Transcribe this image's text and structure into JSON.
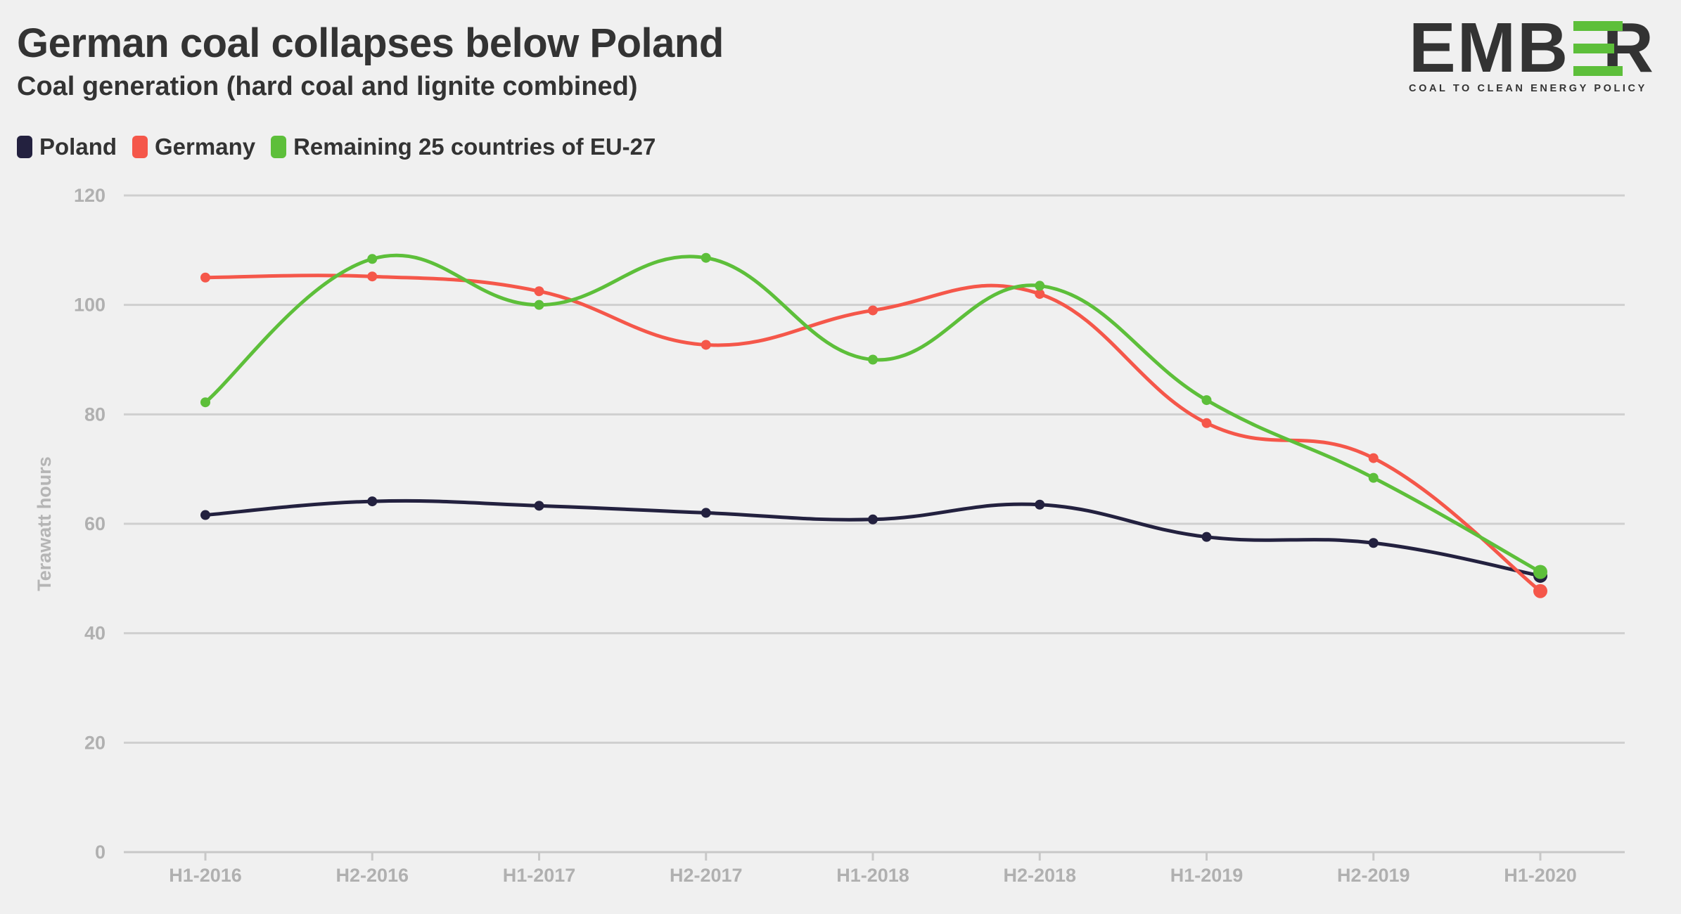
{
  "header": {
    "title": "German coal collapses below Poland",
    "subtitle": "Coal generation (hard coal and lignite combined)"
  },
  "logo": {
    "wordmark": "EMBER",
    "tagline": "COAL TO CLEAN ENERGY POLICY",
    "accent_color": "#5dbf3a"
  },
  "legend": [
    {
      "label": "Poland",
      "color": "#23213f"
    },
    {
      "label": "Germany",
      "color": "#f5574a"
    },
    {
      "label": "Remaining 25 countries of EU-27",
      "color": "#5dbf3a"
    }
  ],
  "chart_data": {
    "type": "line",
    "title": "German coal collapses below Poland",
    "subtitle": "Coal generation (hard coal and lignite combined)",
    "xlabel": "",
    "ylabel": "Terawatt hours",
    "ylim": [
      0,
      120
    ],
    "yticks": [
      0,
      20,
      40,
      60,
      80,
      100,
      120
    ],
    "grid": true,
    "legend_position": "top-left",
    "categories": [
      "H1-2016",
      "H2-2016",
      "H1-2017",
      "H2-2017",
      "H1-2018",
      "H2-2018",
      "H1-2019",
      "H2-2019",
      "H1-2020"
    ],
    "series": [
      {
        "name": "Poland",
        "color": "#23213f",
        "values": [
          61.6,
          64.1,
          63.3,
          62.0,
          60.8,
          63.5,
          57.6,
          56.5,
          50.5
        ]
      },
      {
        "name": "Germany",
        "color": "#f5574a",
        "values": [
          105.0,
          105.2,
          102.5,
          92.7,
          99.0,
          102.0,
          78.4,
          72.0,
          47.7
        ]
      },
      {
        "name": "Remaining 25 countries of EU-27",
        "color": "#5dbf3a",
        "values": [
          82.2,
          108.4,
          100.0,
          108.6,
          90.0,
          103.5,
          82.6,
          68.4,
          51.2
        ]
      }
    ]
  }
}
